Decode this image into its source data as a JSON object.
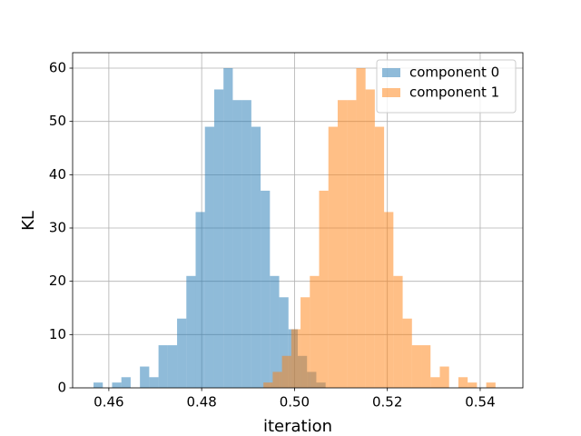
{
  "chart_data": {
    "type": "histogram",
    "xlabel": "iteration",
    "ylabel": "KL",
    "xlim": [
      0.4522,
      0.5492
    ],
    "ylim": [
      0,
      62.9
    ],
    "xticks": [
      0.46,
      0.48,
      {
        "value": 0.5,
        "label": "0.50"
      },
      0.52,
      0.54
    ],
    "yticks": [
      0,
      10,
      20,
      30,
      40,
      50,
      60
    ],
    "grid": true,
    "legend": "upper right",
    "series": [
      {
        "name": "component 0",
        "color": "#1f77b4",
        "bins": [
          0.4567,
          0.4587,
          0.4607,
          0.4627,
          0.4647,
          0.4667,
          0.4687,
          0.4707,
          0.4727,
          0.4747,
          0.4767,
          0.4787,
          0.4807,
          0.4827,
          0.4847,
          0.4867,
          0.4887,
          0.4907,
          0.4927,
          0.4947,
          0.4967,
          0.4987,
          0.5007,
          0.5027,
          0.5047,
          0.5067
        ],
        "values": [
          1,
          0,
          1,
          2,
          0,
          4,
          2,
          8,
          8,
          13,
          21,
          33,
          49,
          56,
          60,
          54,
          54,
          49,
          37,
          21,
          17,
          11,
          6,
          3,
          1
        ]
      },
      {
        "name": "component 1",
        "color": "#ff7f0e",
        "bins": [
          0.4933,
          0.4953,
          0.4973,
          0.4993,
          0.5013,
          0.5033,
          0.5053,
          0.5073,
          0.5093,
          0.5113,
          0.5133,
          0.5153,
          0.5173,
          0.5193,
          0.5213,
          0.5233,
          0.5253,
          0.5273,
          0.5293,
          0.5313,
          0.5333,
          0.5353,
          0.5373,
          0.5393,
          0.5413,
          0.5433
        ],
        "values": [
          1,
          3,
          6,
          11,
          17,
          21,
          37,
          49,
          54,
          54,
          60,
          56,
          49,
          33,
          21,
          13,
          8,
          8,
          2,
          4,
          0,
          2,
          1,
          0,
          1
        ]
      }
    ]
  }
}
